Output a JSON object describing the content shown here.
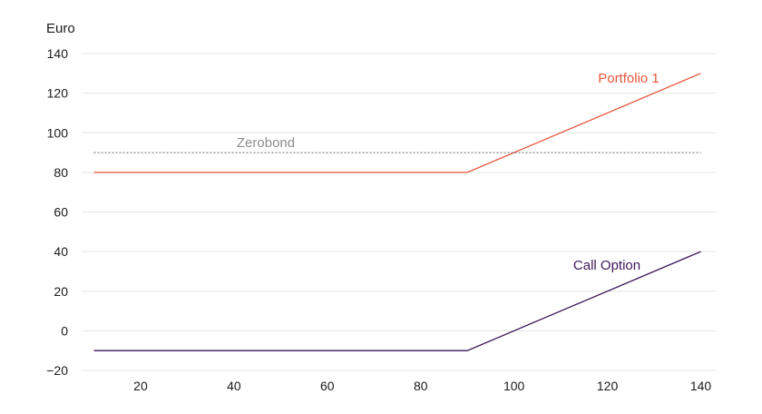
{
  "chart_data": {
    "type": "line",
    "ylabel": "Euro",
    "xlim": [
      10,
      140
    ],
    "ylim": [
      -20,
      140
    ],
    "x_ticks": [
      20,
      40,
      60,
      80,
      100,
      120,
      140
    ],
    "y_ticks": [
      -20,
      0,
      20,
      40,
      60,
      80,
      100,
      120,
      140
    ],
    "y_tick_labels": [
      "−20",
      "0",
      "20",
      "40",
      "60",
      "80",
      "100",
      "120",
      "140"
    ],
    "grid": "horizontal",
    "series": [
      {
        "name": "Portfolio 1",
        "color": "#e8563e",
        "style": "solid",
        "x": [
          10,
          90,
          140
        ],
        "y": [
          80,
          80,
          130
        ]
      },
      {
        "name": "Zerobond",
        "color": "#666666",
        "style": "dotted",
        "x": [
          10,
          140
        ],
        "y": [
          90,
          90
        ]
      },
      {
        "name": "Call Option",
        "color": "#3b1559",
        "style": "solid",
        "x": [
          10,
          90,
          140
        ],
        "y": [
          -10,
          -10,
          40
        ]
      }
    ],
    "annotation_colors": {
      "Zerobond": "#8c8c8c"
    }
  }
}
